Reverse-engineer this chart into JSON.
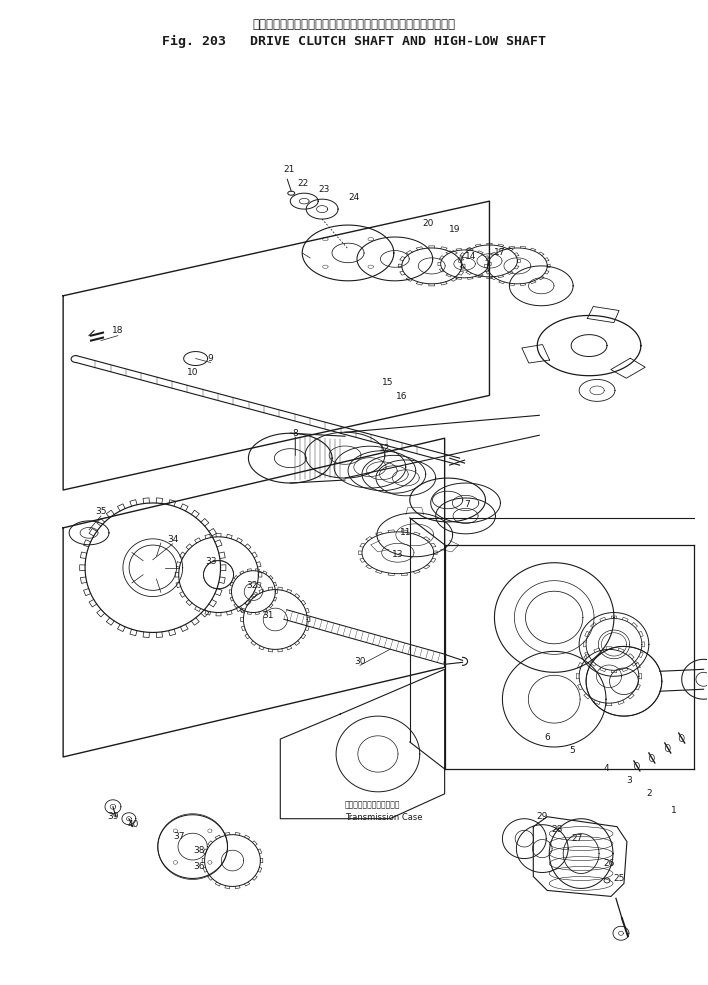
{
  "title_japanese": "ドライブ　クラッチ　シャフト　および　ハイ　ロー　シャフト",
  "title_english": "Fig. 203   DRIVE CLUTCH SHAFT AND HIGH-LOW SHAFT",
  "bg_color": "#ffffff",
  "line_color": "#1a1a1a",
  "fig_width": 7.08,
  "fig_height": 9.85,
  "dpi": 100,
  "transmission_case_label_jp": "トランスミッションケース",
  "transmission_case_label_en": "Transmission Case"
}
